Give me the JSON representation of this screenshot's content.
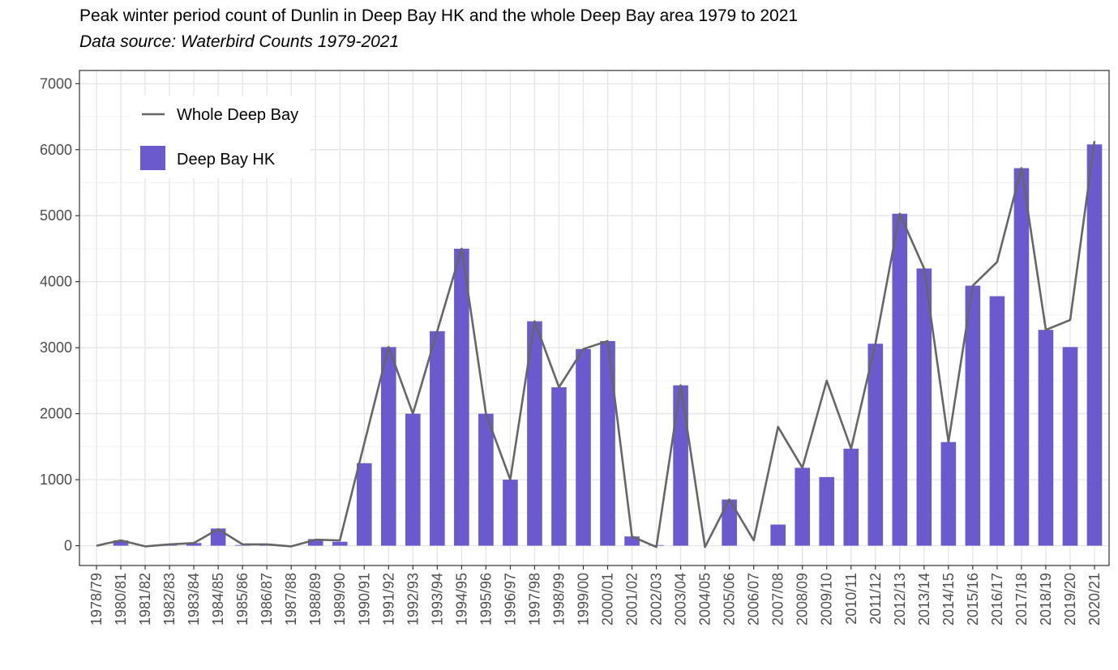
{
  "chart_data": {
    "type": "bar",
    "title": "Peak winter period count of Dunlin in Deep Bay HK and the whole Deep Bay area 1979 to 2021",
    "subtitle": "Data source: Waterbird Counts 1979-2021",
    "xlabel": "",
    "ylabel": "",
    "ylim": [
      -300,
      7200
    ],
    "yticks": [
      0,
      1000,
      2000,
      3000,
      4000,
      5000,
      6000,
      7000
    ],
    "grid": true,
    "legend_position": "top-left",
    "categories": [
      "1978/79",
      "1980/81",
      "1981/82",
      "1982/83",
      "1983/84",
      "1984/85",
      "1985/86",
      "1986/87",
      "1987/88",
      "1988/89",
      "1989/90",
      "1990/91",
      "1991/92",
      "1992/93",
      "1993/94",
      "1994/95",
      "1995/96",
      "1996/97",
      "1997/98",
      "1998/99",
      "1999/00",
      "2000/01",
      "2001/02",
      "2002/03",
      "2003/04",
      "2004/05",
      "2005/06",
      "2006/07",
      "2007/08",
      "2008/09",
      "2009/10",
      "2010/11",
      "2011/12",
      "2012/13",
      "2013/14",
      "2014/15",
      "2015/16",
      "2016/17",
      "2017/18",
      "2018/19",
      "2019/20",
      "2020/21"
    ],
    "series": [
      {
        "name": "Deep Bay HK",
        "type": "bar",
        "color": "#6a5acd",
        "values": [
          0,
          80,
          0,
          10,
          40,
          260,
          10,
          10,
          0,
          100,
          60,
          1250,
          3010,
          2000,
          3250,
          4500,
          2000,
          1000,
          3400,
          2400,
          2980,
          3100,
          140,
          10,
          2430,
          0,
          700,
          0,
          320,
          1180,
          1040,
          1470,
          3060,
          5030,
          4200,
          1570,
          3940,
          3780,
          5720,
          3270,
          3010,
          6080
        ]
      },
      {
        "name": "Whole Deep Bay",
        "type": "line",
        "color": "#666666",
        "values": [
          0,
          80,
          -10,
          20,
          40,
          250,
          20,
          20,
          -10,
          90,
          80,
          1550,
          3010,
          2000,
          3250,
          4500,
          2000,
          1000,
          3400,
          2400,
          2980,
          3100,
          140,
          -20,
          2430,
          -20,
          700,
          80,
          1800,
          1180,
          2500,
          1470,
          3060,
          5030,
          4200,
          1570,
          3940,
          4300,
          5720,
          3270,
          3420,
          6130
        ]
      }
    ]
  }
}
